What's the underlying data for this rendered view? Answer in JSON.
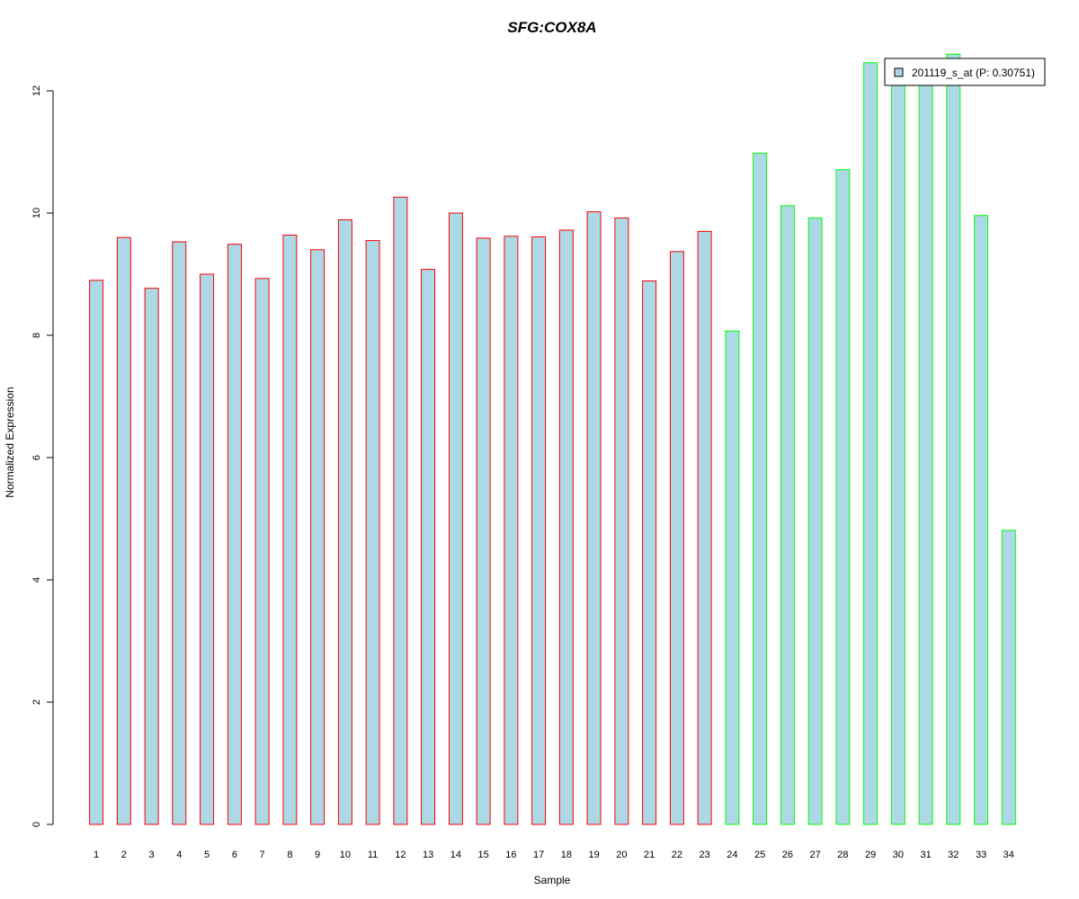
{
  "chart_data": {
    "type": "bar",
    "title": "SFG:COX8A",
    "xlabel": "Sample",
    "ylabel": "Normalized Expression",
    "ylim": [
      0,
      12.6
    ],
    "yticks": [
      "0",
      "2",
      "4",
      "6",
      "8",
      "10",
      "12"
    ],
    "categories": [
      "1",
      "2",
      "3",
      "4",
      "5",
      "6",
      "7",
      "8",
      "9",
      "10",
      "11",
      "12",
      "13",
      "14",
      "15",
      "16",
      "17",
      "18",
      "19",
      "20",
      "21",
      "22",
      "23",
      "24",
      "25",
      "26",
      "27",
      "28",
      "29",
      "30",
      "31",
      "32",
      "33",
      "34"
    ],
    "series": [
      {
        "name": "201119_s_at (P: 0.30751)",
        "values": [
          8.9,
          9.6,
          8.77,
          9.53,
          9.0,
          9.49,
          8.93,
          9.64,
          9.4,
          9.89,
          9.55,
          10.26,
          9.08,
          10.0,
          9.59,
          9.62,
          9.61,
          9.72,
          10.02,
          9.92,
          8.89,
          9.37,
          9.7,
          8.07,
          10.98,
          10.12,
          9.92,
          10.71,
          12.46,
          12.1,
          12.1,
          12.6,
          9.96,
          4.81
        ],
        "fill": "#add8e6",
        "borders": [
          "#ff0000",
          "#ff0000",
          "#ff0000",
          "#ff0000",
          "#ff0000",
          "#ff0000",
          "#ff0000",
          "#ff0000",
          "#ff0000",
          "#ff0000",
          "#ff0000",
          "#ff0000",
          "#ff0000",
          "#ff0000",
          "#ff0000",
          "#ff0000",
          "#ff0000",
          "#ff0000",
          "#ff0000",
          "#ff0000",
          "#ff0000",
          "#ff0000",
          "#ff0000",
          "#00ff00",
          "#00ff00",
          "#00ff00",
          "#00ff00",
          "#00ff00",
          "#00ff00",
          "#00ff00",
          "#00ff00",
          "#00ff00",
          "#00ff00",
          "#00ff00"
        ]
      }
    ],
    "title_color": "#0000cd",
    "grid": false,
    "legend_position": "top-right"
  }
}
